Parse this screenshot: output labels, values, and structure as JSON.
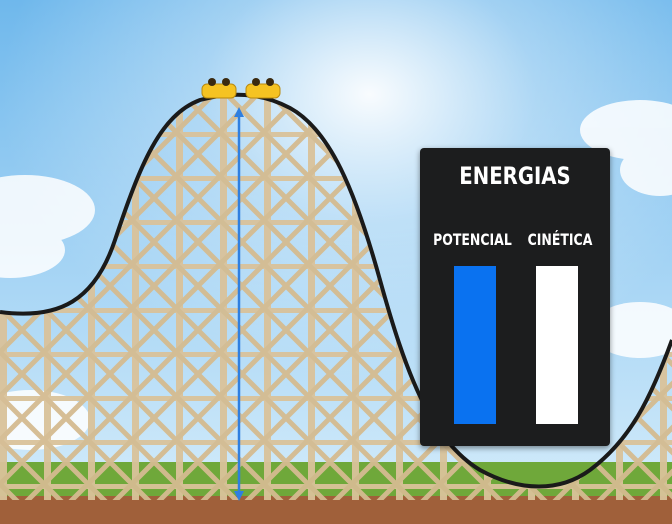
{
  "panel": {
    "title": "ENERGIAS",
    "bars": [
      {
        "label": "POTENCIAL",
        "level": 1.0,
        "color": "#0a72f0"
      },
      {
        "label": "CINÉTICA",
        "level": 1.0,
        "color": "#ffffff"
      }
    ]
  },
  "colors": {
    "sky_top": "#6fb8ec",
    "sky_bottom": "#d8eefb",
    "track": "#1a1a1a",
    "lattice": "#d9c29a",
    "grass": "#6fa83a",
    "dirt": "#a0603a",
    "height_arrow": "#2f7fe0",
    "cart": "#f5c322"
  },
  "icons": [
    "roller-coaster-cart-icon",
    "double-headed-arrow-icon"
  ]
}
